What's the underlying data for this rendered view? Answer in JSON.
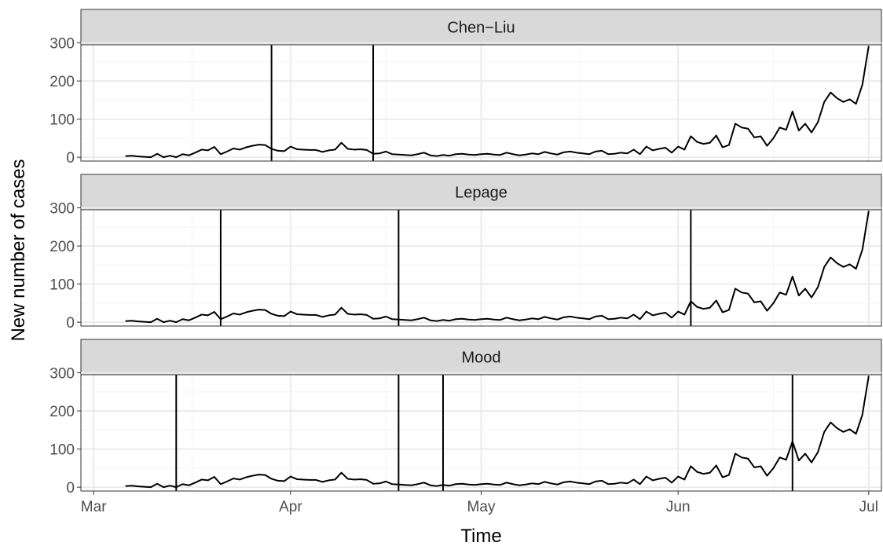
{
  "chart_data": {
    "type": "line",
    "xlabel": "Time",
    "ylabel": "New number of cases",
    "ylim": [
      -10,
      295
    ],
    "y_ticks": [
      0,
      100,
      200,
      300
    ],
    "x_ticks": [
      {
        "label": "Mar",
        "date": "2020-03-01"
      },
      {
        "label": "Apr",
        "date": "2020-04-01"
      },
      {
        "label": "May",
        "date": "2020-05-01"
      },
      {
        "label": "Jun",
        "date": "2020-06-01"
      },
      {
        "label": "Jul",
        "date": "2020-07-01"
      }
    ],
    "x_range": [
      "2020-02-28",
      "2020-07-03"
    ],
    "grid": true,
    "colors": {
      "line": "#000000",
      "strip_bg": "#d9d9d9",
      "panel_border": "#333333",
      "grid_major": "#ebebeb",
      "grid_minor": "#f5f5f5"
    },
    "series_start": "2020-03-06",
    "values": [
      3,
      4,
      2,
      1,
      0,
      9,
      0,
      4,
      0,
      8,
      5,
      12,
      20,
      18,
      27,
      8,
      15,
      23,
      20,
      26,
      30,
      33,
      32,
      22,
      17,
      16,
      28,
      21,
      20,
      19,
      19,
      14,
      18,
      20,
      38,
      22,
      20,
      21,
      19,
      9,
      10,
      15,
      8,
      7,
      6,
      5,
      8,
      12,
      5,
      3,
      6,
      4,
      8,
      9,
      7,
      6,
      8,
      9,
      7,
      6,
      12,
      8,
      5,
      7,
      10,
      8,
      14,
      10,
      7,
      13,
      15,
      12,
      10,
      8,
      15,
      17,
      8,
      9,
      12,
      10,
      20,
      8,
      28,
      18,
      22,
      25,
      12,
      28,
      20,
      55,
      40,
      35,
      38,
      57,
      26,
      32,
      88,
      78,
      75,
      52,
      55,
      30,
      50,
      78,
      72,
      120,
      70,
      88,
      65,
      92,
      145,
      170,
      155,
      145,
      152,
      140,
      190,
      292
    ],
    "panels": [
      {
        "title": "Chen−Liu",
        "change_points": [
          "2020-03-29",
          "2020-04-14"
        ]
      },
      {
        "title": "Lepage",
        "change_points": [
          "2020-03-21",
          "2020-04-18",
          "2020-06-03"
        ]
      },
      {
        "title": "Mood",
        "change_points": [
          "2020-03-14",
          "2020-04-18",
          "2020-04-25",
          "2020-06-19"
        ]
      }
    ]
  }
}
